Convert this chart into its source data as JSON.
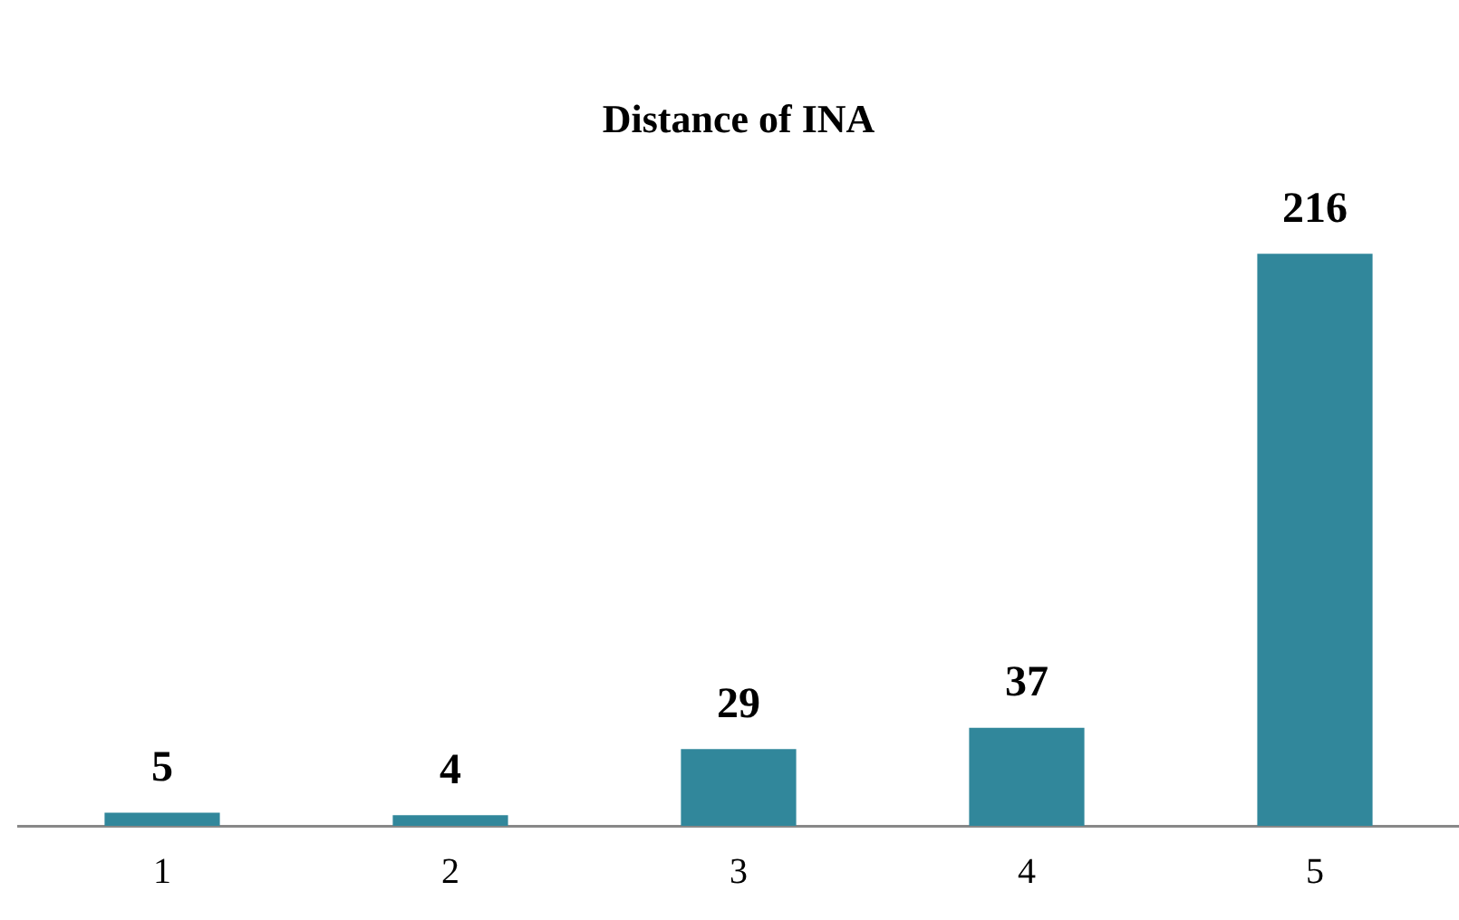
{
  "chart_data": {
    "type": "bar",
    "title": "Distance of INA",
    "categories": [
      "1",
      "2",
      "3",
      "4",
      "5"
    ],
    "values": [
      5,
      4,
      29,
      37,
      216
    ],
    "color": "#31879b",
    "data_labels": true,
    "grid": false,
    "legend": false
  }
}
